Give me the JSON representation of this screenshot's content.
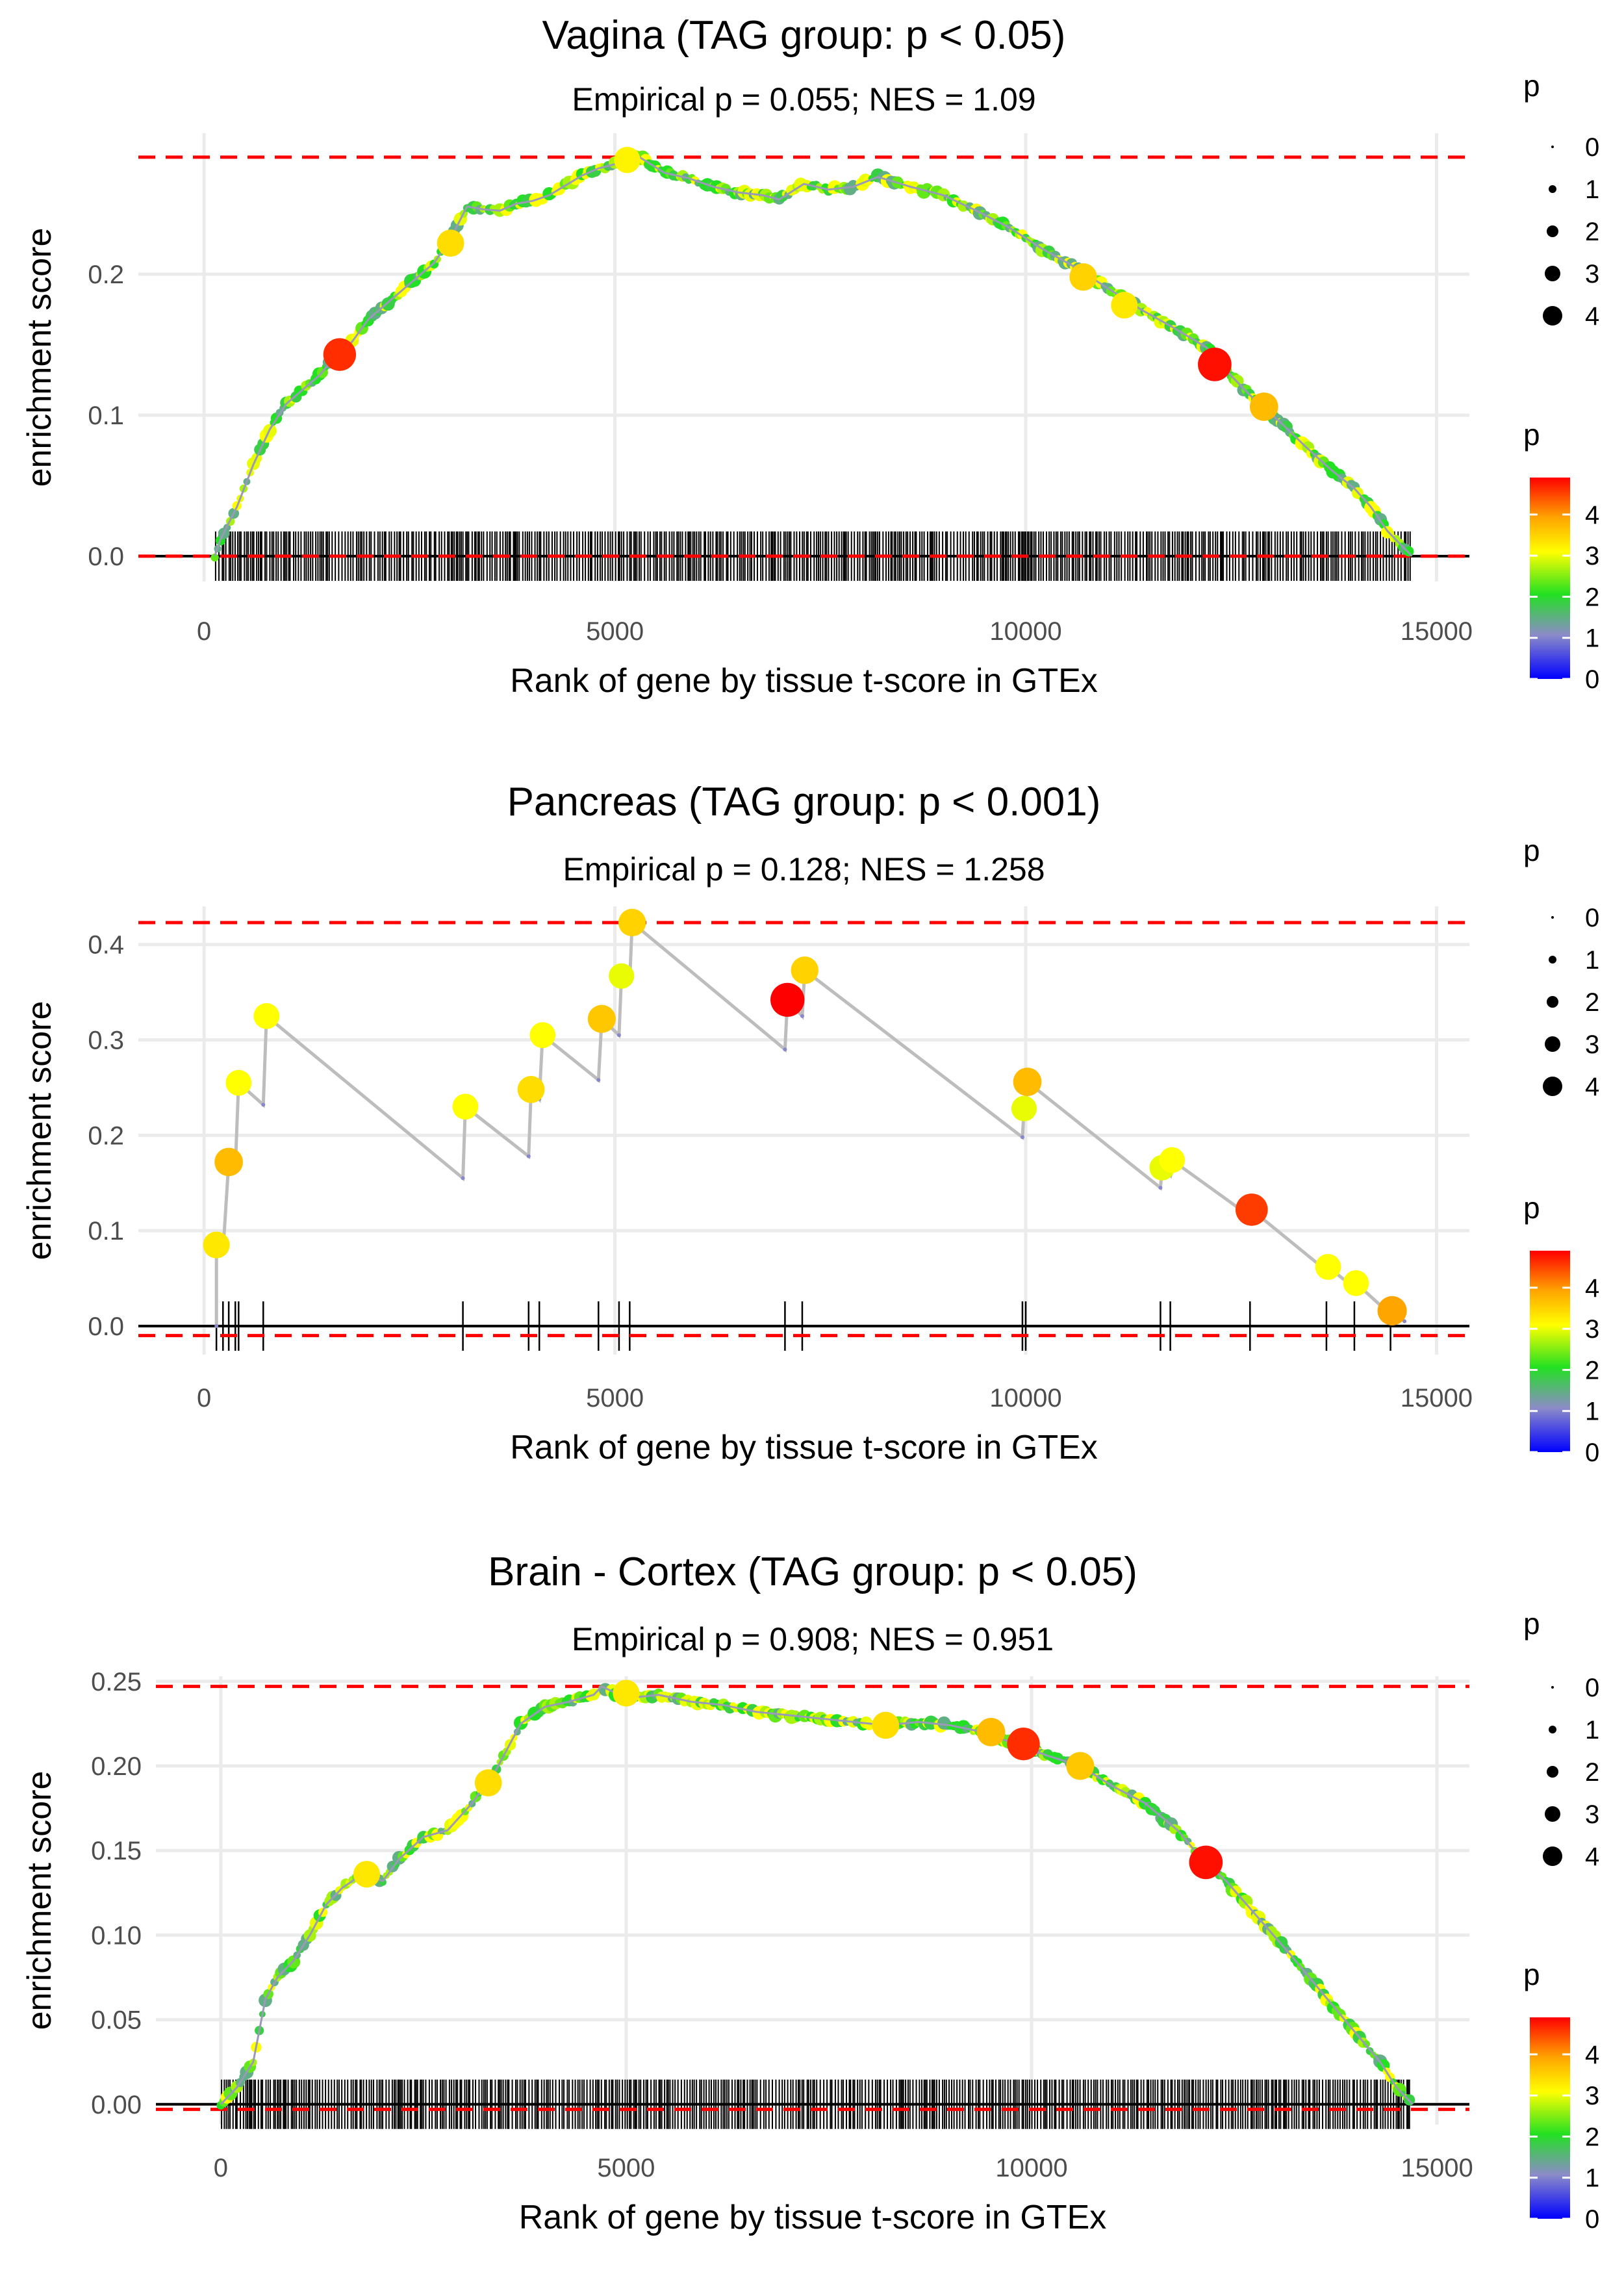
{
  "chart_data": [
    {
      "type": "line",
      "title": "Vagina (TAG group: p < 0.05)",
      "subtitle": "Empirical p = 0.055; NES = 1.09",
      "xlabel": "Rank of gene by tissue t-score in GTEx",
      "ylabel": "enrichment score",
      "xlim": [
        -800,
        15400
      ],
      "ylim": [
        -0.018,
        0.3
      ],
      "xticks": [
        0,
        5000,
        10000,
        15000
      ],
      "xtick_labels": [
        "0",
        "5000",
        "10000",
        "15000"
      ],
      "yticks": [
        0.0,
        0.1,
        0.2
      ],
      "ytick_labels": [
        "0.0",
        "0.1",
        "0.2"
      ],
      "max_es_line": 0.283,
      "min_es_line": 0.0,
      "dense": true,
      "points": [
        [
          130,
          0
        ],
        [
          200,
          0.012
        ],
        [
          400,
          0.035
        ],
        [
          600,
          0.065
        ],
        [
          800,
          0.09
        ],
        [
          1000,
          0.108
        ],
        [
          1200,
          0.118
        ],
        [
          1400,
          0.128
        ],
        [
          1600,
          0.142
        ],
        [
          1800,
          0.152
        ],
        [
          2000,
          0.168
        ],
        [
          2200,
          0.178
        ],
        [
          2400,
          0.188
        ],
        [
          2600,
          0.198
        ],
        [
          2800,
          0.208
        ],
        [
          3000,
          0.225
        ],
        [
          3200,
          0.248
        ],
        [
          3400,
          0.246
        ],
        [
          3600,
          0.245
        ],
        [
          3800,
          0.25
        ],
        [
          4000,
          0.252
        ],
        [
          4200,
          0.256
        ],
        [
          4400,
          0.263
        ],
        [
          4600,
          0.27
        ],
        [
          4800,
          0.275
        ],
        [
          5000,
          0.278
        ],
        [
          5300,
          0.283
        ],
        [
          5600,
          0.272
        ],
        [
          5900,
          0.268
        ],
        [
          6200,
          0.262
        ],
        [
          6500,
          0.258
        ],
        [
          6800,
          0.256
        ],
        [
          7000,
          0.253
        ],
        [
          7300,
          0.264
        ],
        [
          7600,
          0.26
        ],
        [
          7900,
          0.262
        ],
        [
          8200,
          0.269
        ],
        [
          8600,
          0.262
        ],
        [
          9000,
          0.256
        ],
        [
          9400,
          0.245
        ],
        [
          9800,
          0.233
        ],
        [
          10200,
          0.218
        ],
        [
          10600,
          0.205
        ],
        [
          11000,
          0.19
        ],
        [
          11400,
          0.175
        ],
        [
          11800,
          0.162
        ],
        [
          12200,
          0.148
        ],
        [
          12500,
          0.128
        ],
        [
          12800,
          0.11
        ],
        [
          13100,
          0.095
        ],
        [
          13400,
          0.078
        ],
        [
          13700,
          0.062
        ],
        [
          14000,
          0.048
        ],
        [
          14200,
          0.035
        ],
        [
          14400,
          0.018
        ],
        [
          14700,
          0
        ]
      ],
      "highlight_points": [
        [
          1650,
          0.143,
          4.6
        ],
        [
          12300,
          0.136,
          4.8
        ],
        [
          12900,
          0.106,
          3.6
        ],
        [
          10700,
          0.198,
          3.4
        ],
        [
          11200,
          0.178,
          3.2
        ],
        [
          3000,
          0.222,
          3.3
        ],
        [
          5150,
          0.281,
          3.1
        ]
      ],
      "size_legend": {
        "title": "p",
        "labels": [
          "0",
          "1",
          "2",
          "3",
          "4"
        ]
      },
      "color_legend": {
        "title": "p",
        "labels": [
          "4",
          "3",
          "2",
          "1",
          "0"
        ]
      }
    },
    {
      "type": "line",
      "title": "Pancreas (TAG group: p < 0.001)",
      "subtitle": "Empirical p = 0.128; NES = 1.258",
      "xlabel": "Rank of gene by tissue t-score in GTEx",
      "ylabel": "enrichment score",
      "xlim": [
        -800,
        15400
      ],
      "ylim": [
        -0.03,
        0.44
      ],
      "xticks": [
        0,
        5000,
        10000,
        15000
      ],
      "xtick_labels": [
        "0",
        "5000",
        "10000",
        "15000"
      ],
      "yticks": [
        0.0,
        0.1,
        0.2,
        0.3,
        0.4
      ],
      "ytick_labels": [
        "0.0",
        "0.1",
        "0.2",
        "0.3",
        "0.4"
      ],
      "max_es_line": 0.423,
      "min_es_line": -0.01,
      "dense": false,
      "points": [
        [
          150,
          0.0
        ],
        [
          150,
          0.085
        ],
        [
          230,
          0.078
        ],
        [
          300,
          0.172
        ],
        [
          380,
          0.165
        ],
        [
          420,
          0.255
        ],
        [
          720,
          0.232
        ],
        [
          760,
          0.325
        ],
        [
          3150,
          0.155
        ],
        [
          3180,
          0.23
        ],
        [
          3950,
          0.178
        ],
        [
          3980,
          0.248
        ],
        [
          4080,
          0.238
        ],
        [
          4120,
          0.305
        ],
        [
          4800,
          0.258
        ],
        [
          4840,
          0.322
        ],
        [
          5050,
          0.305
        ],
        [
          5080,
          0.367
        ],
        [
          5180,
          0.362
        ],
        [
          5210,
          0.423
        ],
        [
          7070,
          0.29
        ],
        [
          7100,
          0.342
        ],
        [
          7280,
          0.325
        ],
        [
          7310,
          0.373
        ],
        [
          9960,
          0.198
        ],
        [
          9980,
          0.228
        ],
        [
          10000,
          0.226
        ],
        [
          10020,
          0.256
        ],
        [
          11640,
          0.145
        ],
        [
          11660,
          0.166
        ],
        [
          11760,
          0.158
        ],
        [
          11780,
          0.174
        ],
        [
          12730,
          0.115
        ],
        [
          12750,
          0.122
        ],
        [
          13660,
          0.058
        ],
        [
          13680,
          0.062
        ],
        [
          14000,
          0.04
        ],
        [
          14020,
          0.045
        ],
        [
          14440,
          0.012
        ],
        [
          14460,
          0.016
        ],
        [
          14610,
          0.005
        ]
      ],
      "highlight_points": [
        [
          150,
          0.085,
          3.2
        ],
        [
          300,
          0.172,
          3.6
        ],
        [
          420,
          0.255,
          3.0
        ],
        [
          760,
          0.325,
          3.0
        ],
        [
          3180,
          0.23,
          3.0
        ],
        [
          3980,
          0.248,
          3.3
        ],
        [
          4120,
          0.305,
          3.0
        ],
        [
          4840,
          0.322,
          3.5
        ],
        [
          5080,
          0.367,
          2.9
        ],
        [
          5210,
          0.423,
          3.4
        ],
        [
          7100,
          0.342,
          4.9
        ],
        [
          7310,
          0.373,
          3.4
        ],
        [
          9980,
          0.228,
          2.9
        ],
        [
          10020,
          0.256,
          3.6
        ],
        [
          11660,
          0.166,
          2.9
        ],
        [
          11780,
          0.174,
          3.0
        ],
        [
          12750,
          0.122,
          4.5
        ],
        [
          13680,
          0.062,
          3.0
        ],
        [
          14020,
          0.045,
          3.0
        ],
        [
          14460,
          0.016,
          3.8
        ]
      ],
      "hit_ranks": [
        150,
        230,
        300,
        380,
        420,
        720,
        3150,
        3950,
        4080,
        4800,
        5050,
        5180,
        7070,
        7280,
        9960,
        10000,
        11640,
        11760,
        12730,
        13660,
        14000,
        14440
      ],
      "size_legend": {
        "title": "p",
        "labels": [
          "0",
          "1",
          "2",
          "3",
          "4"
        ]
      },
      "color_legend": {
        "title": "p",
        "labels": [
          "4",
          "3",
          "2",
          "1",
          "0"
        ]
      }
    },
    {
      "type": "line",
      "title": "Brain - Cortex (TAG group: p < 0.05)",
      "subtitle": "Empirical p = 0.908; NES = 0.951",
      "xlabel": "Rank of gene by tissue t-score in GTEx",
      "ylabel": "enrichment score",
      "xlim": [
        -800,
        15400
      ],
      "ylim": [
        -0.012,
        0.253
      ],
      "xticks": [
        0,
        5000,
        10000,
        15000
      ],
      "xtick_labels": [
        "0",
        "5000",
        "10000",
        "15000"
      ],
      "yticks": [
        0.0,
        0.05,
        0.1,
        0.15,
        0.2,
        0.25
      ],
      "ytick_labels": [
        "0.00",
        "0.05",
        "0.10",
        "0.15",
        "0.20",
        "0.25"
      ],
      "max_es_line": 0.247,
      "min_es_line": -0.003,
      "dense": true,
      "points": [
        [
          0,
          0
        ],
        [
          200,
          0.01
        ],
        [
          400,
          0.025
        ],
        [
          550,
          0.062
        ],
        [
          700,
          0.075
        ],
        [
          900,
          0.085
        ],
        [
          1100,
          0.1
        ],
        [
          1300,
          0.118
        ],
        [
          1500,
          0.128
        ],
        [
          1750,
          0.136
        ],
        [
          2000,
          0.132
        ],
        [
          2200,
          0.145
        ],
        [
          2500,
          0.158
        ],
        [
          2800,
          0.162
        ],
        [
          3100,
          0.178
        ],
        [
          3400,
          0.198
        ],
        [
          3700,
          0.225
        ],
        [
          4000,
          0.235
        ],
        [
          4300,
          0.238
        ],
        [
          4600,
          0.242
        ],
        [
          4700,
          0.247
        ],
        [
          5000,
          0.24
        ],
        [
          5400,
          0.242
        ],
        [
          5800,
          0.238
        ],
        [
          6200,
          0.236
        ],
        [
          6600,
          0.232
        ],
        [
          7000,
          0.23
        ],
        [
          7400,
          0.228
        ],
        [
          7800,
          0.226
        ],
        [
          8200,
          0.224
        ],
        [
          8600,
          0.226
        ],
        [
          9000,
          0.224
        ],
        [
          9400,
          0.22
        ],
        [
          9800,
          0.213
        ],
        [
          10200,
          0.206
        ],
        [
          10600,
          0.2
        ],
        [
          11000,
          0.188
        ],
        [
          11400,
          0.178
        ],
        [
          11800,
          0.162
        ],
        [
          12100,
          0.145
        ],
        [
          12400,
          0.132
        ],
        [
          12800,
          0.11
        ],
        [
          13200,
          0.088
        ],
        [
          13600,
          0.065
        ],
        [
          14000,
          0.042
        ],
        [
          14300,
          0.025
        ],
        [
          14500,
          0.01
        ],
        [
          14700,
          0
        ]
      ],
      "highlight_points": [
        [
          9900,
          0.213,
          4.6
        ],
        [
          12150,
          0.143,
          4.8
        ],
        [
          10600,
          0.2,
          3.5
        ],
        [
          1800,
          0.136,
          3.2
        ],
        [
          3300,
          0.19,
          3.3
        ],
        [
          9500,
          0.22,
          3.6
        ],
        [
          8200,
          0.224,
          3.3
        ],
        [
          5000,
          0.243,
          3.2
        ]
      ],
      "size_legend": {
        "title": "p",
        "labels": [
          "0",
          "1",
          "2",
          "3",
          "4"
        ]
      },
      "color_legend": {
        "title": "p",
        "labels": [
          "4",
          "3",
          "2",
          "1",
          "0"
        ]
      }
    }
  ]
}
